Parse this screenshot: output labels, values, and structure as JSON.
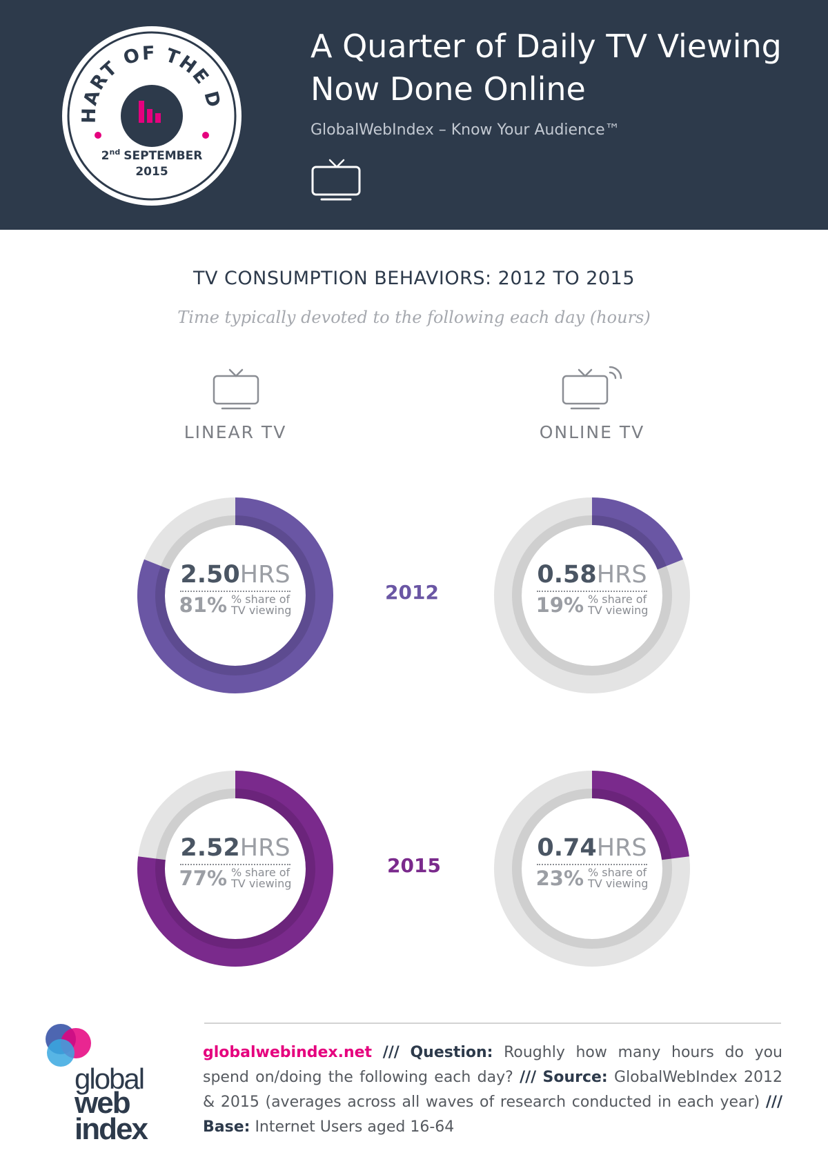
{
  "header": {
    "badge": {
      "arc_text": "CHART OF THE DAY",
      "day_num": "2",
      "day_suffix": "nd",
      "month": "SEPTEMBER",
      "year": "2015",
      "accent_color": "#e5007e"
    },
    "title_line1": "A Quarter of Daily TV Viewing",
    "title_line2": "Now Done Online",
    "subtitle": "GlobalWebIndex – Know Your Audience™",
    "icon": "tv-icon"
  },
  "chart_data": {
    "type": "pie",
    "title": "TV CONSUMPTION BEHAVIORS: 2012 TO 2015",
    "subtitle": "Time typically devoted to the following each day (hours)",
    "columns": [
      {
        "key": "linear",
        "label": "LINEAR TV",
        "icon": "tv-icon"
      },
      {
        "key": "online",
        "label": "ONLINE TV",
        "icon": "online-tv-icon"
      }
    ],
    "rows": [
      {
        "year": "2012",
        "color": "#6a56a4",
        "linear": {
          "hours": "2.50",
          "share": 81,
          "share_text": "81%"
        },
        "online": {
          "hours": "0.58",
          "share": 19,
          "share_text": "19%"
        }
      },
      {
        "year": "2015",
        "color": "#7a2a8c",
        "linear": {
          "hours": "2.52",
          "share": 77,
          "share_text": "77%"
        },
        "online": {
          "hours": "0.74",
          "share": 23,
          "share_text": "23%"
        }
      }
    ],
    "unit": "HRS",
    "share_label_line1": "% share of",
    "share_label_line2": "TV viewing",
    "track_color": "#e4e4e4",
    "track_inner_color": "#cfcfcf"
  },
  "footer": {
    "logo": {
      "word1": "global",
      "word2": "web",
      "word3": "index"
    },
    "site": "globalwebindex.net",
    "sep": "///",
    "question_label": "Question:",
    "question_text": "Roughly how many hours do you spend on/doing the following each day?",
    "source_label": "Source:",
    "source_text": "GlobalWebIndex 2012 & 2015 (averages across all waves of research conducted in each year)",
    "base_label": "Base:",
    "base_text": "Internet Users aged 16-64"
  }
}
